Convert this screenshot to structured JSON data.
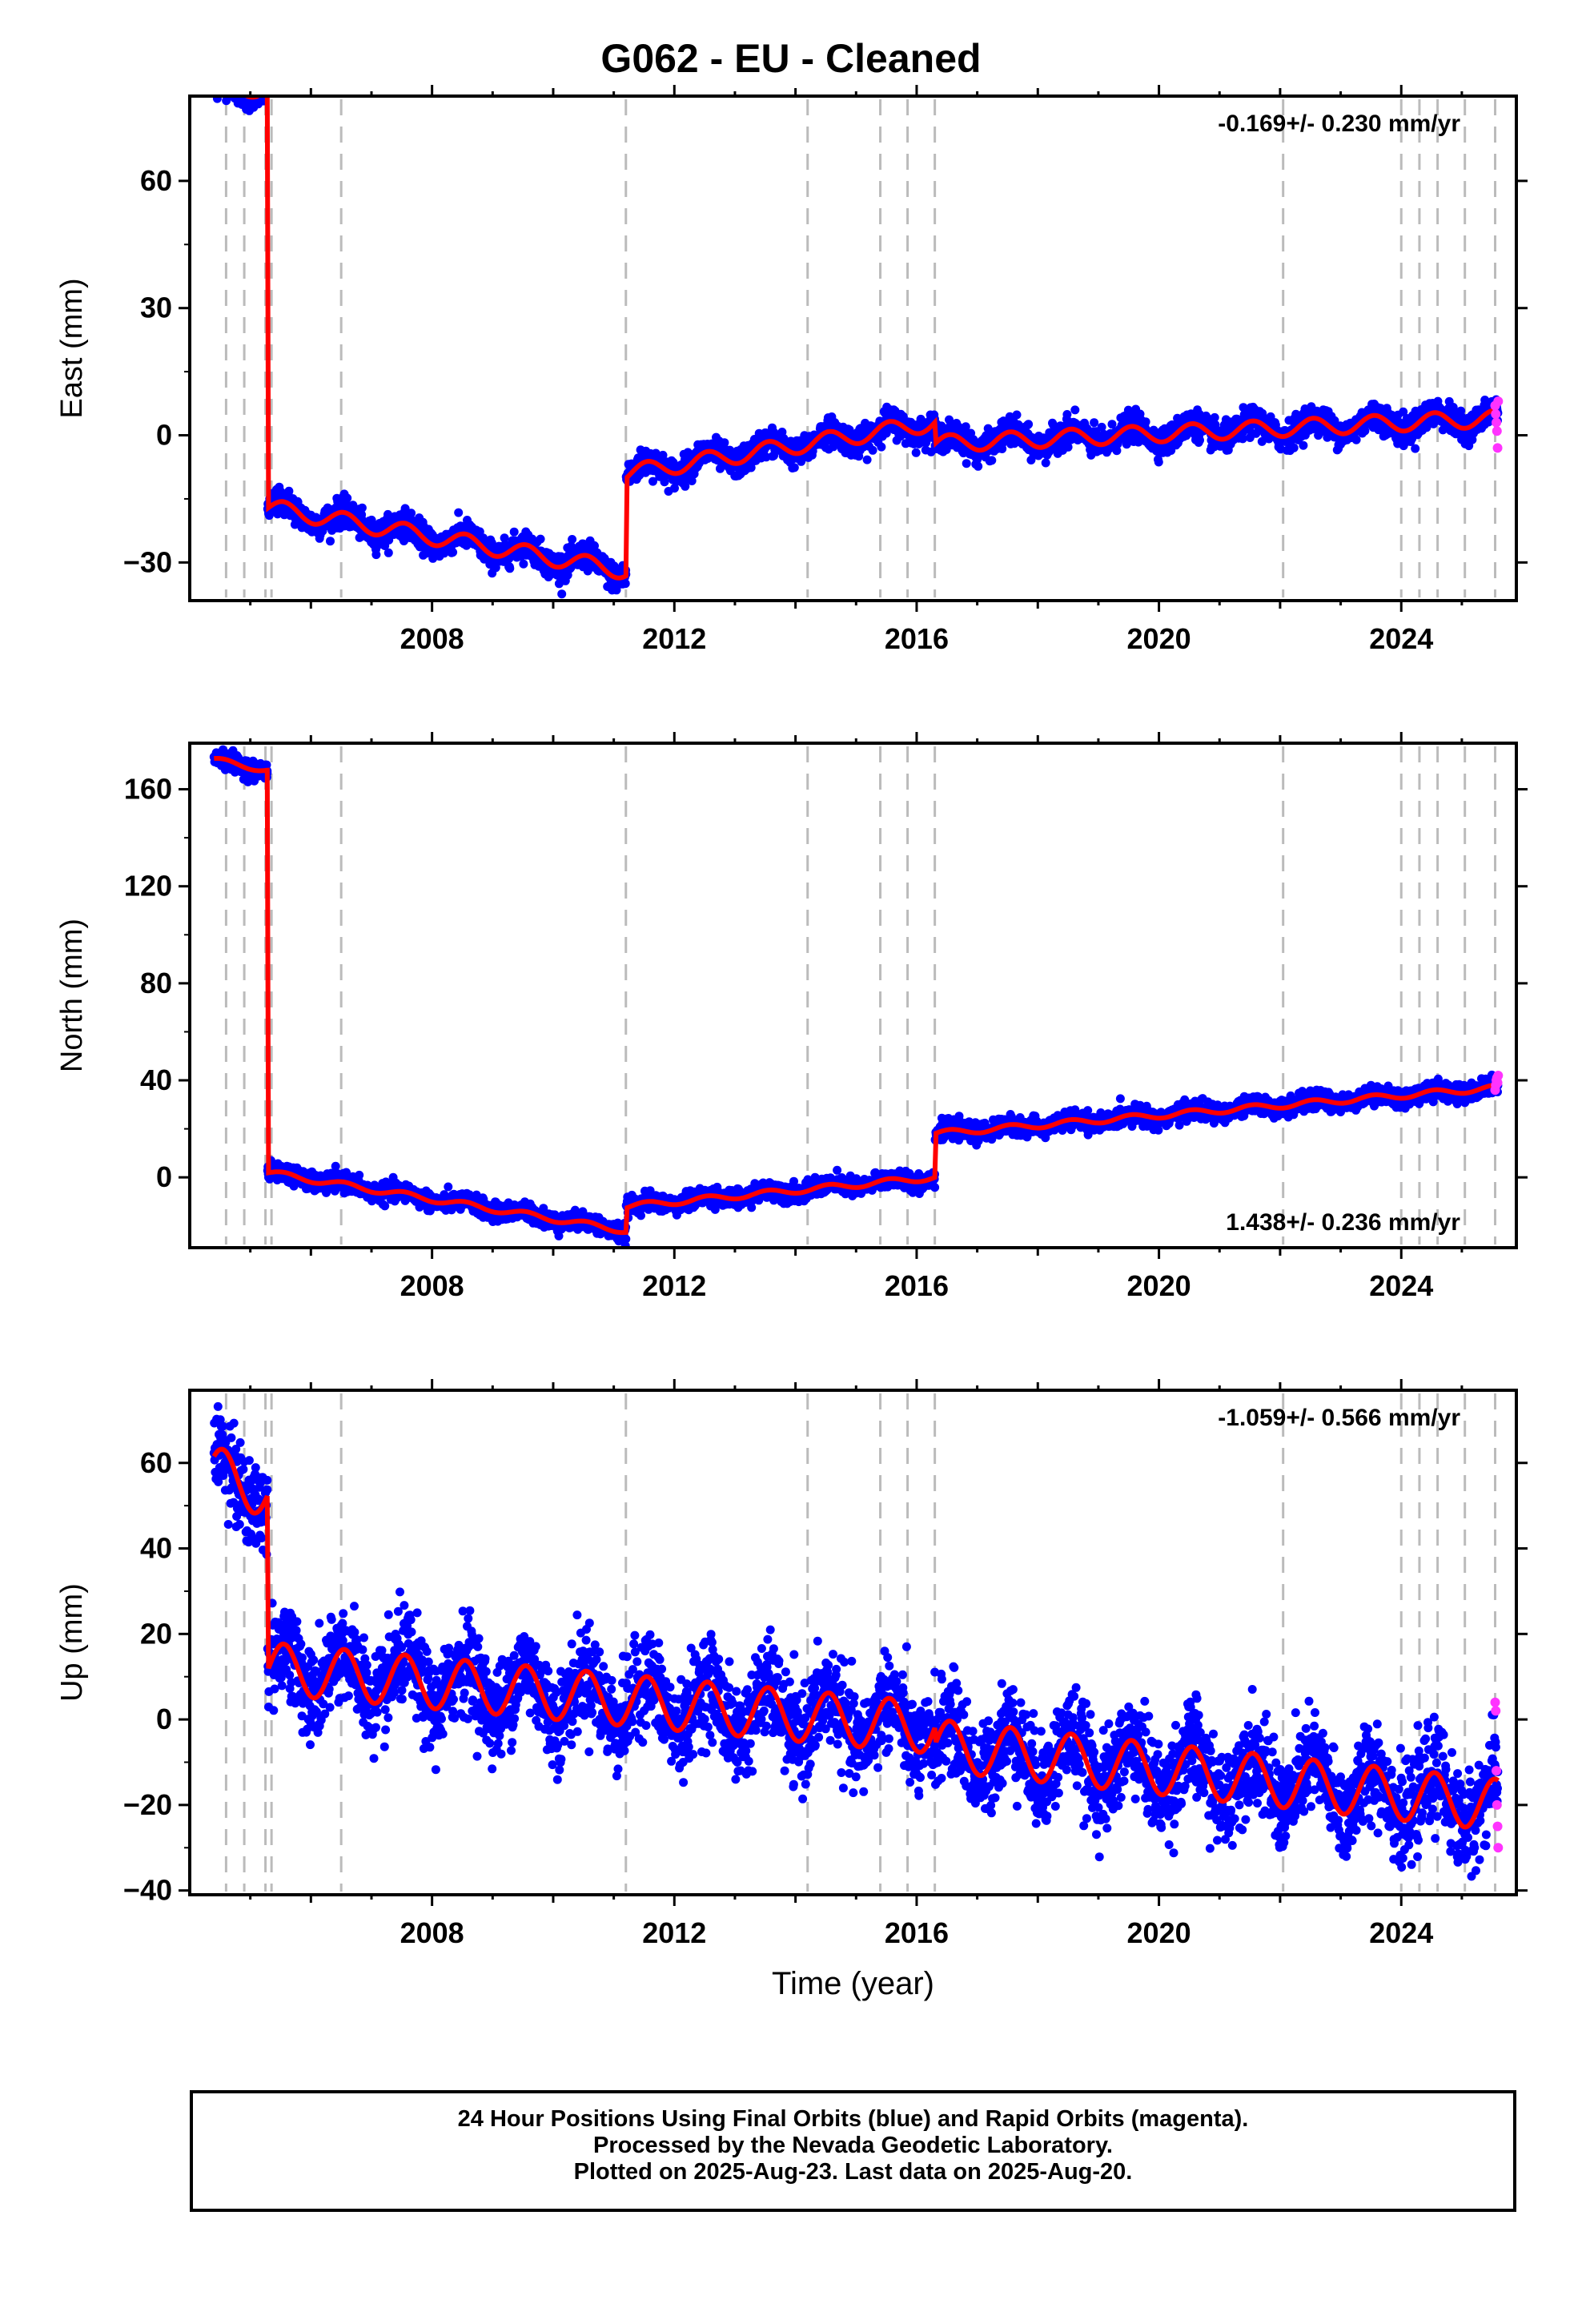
{
  "title": "G062  - EU - Cleaned",
  "xlabel": "Time (year)",
  "colors": {
    "final": "#0000ff",
    "rapid": "#ff33ff",
    "model": "#ff0000",
    "steps": "#bbbbbb"
  },
  "footer": {
    "line1": "24 Hour Positions Using Final Orbits (blue) and Rapid Orbits (magenta).",
    "line2": "Processed by the Nevada Geodetic Laboratory.",
    "line3": "Plotted on 2025-Aug-23. Last data on 2025-Aug-20."
  },
  "chart_data": [
    {
      "type": "scatter",
      "ylabel": "East (mm)",
      "rate_label": "-0.169+/- 0.230 mm/yr",
      "rate_position": "top-right",
      "xlim": [
        2004.0,
        2025.9
      ],
      "ylim": [
        -39,
        80
      ],
      "yticks": [
        -30,
        0,
        30,
        60
      ],
      "xticks": [
        2008,
        2012,
        2016,
        2020,
        2024
      ],
      "steps": [
        2004.6,
        2004.9,
        2005.25,
        2005.35,
        2006.5,
        2011.2,
        2014.2,
        2015.4,
        2015.85,
        2016.3,
        2022.05,
        2024.0,
        2024.3,
        2024.6,
        2025.05,
        2025.55
      ],
      "noise": 1.6,
      "seasonal_amp": 2.0,
      "segments": [
        {
          "t0": 2004.4,
          "t1": 2005.28,
          "y0": 81,
          "y1": 82
        },
        {
          "t0": 2005.28,
          "t1": 2011.2,
          "y0": -17,
          "y1": -32
        },
        {
          "t0": 2011.2,
          "t1": 2016.3,
          "y0": -9,
          "y1": 3
        },
        {
          "t0": 2016.3,
          "t1": 2025.6,
          "y0": -2,
          "y1": 4
        }
      ],
      "rapid": [
        [
          2025.55,
          7
        ],
        [
          2025.56,
          5
        ],
        [
          2025.57,
          3
        ],
        [
          2025.58,
          1
        ],
        [
          2025.59,
          -3
        ],
        [
          2025.6,
          8
        ]
      ]
    },
    {
      "type": "scatter",
      "ylabel": "North (mm)",
      "rate_label": "1.438+/- 0.236 mm/yr",
      "rate_position": "bottom-right",
      "xlim": [
        2004.0,
        2025.9
      ],
      "ylim": [
        -29,
        179
      ],
      "yticks": [
        0,
        40,
        80,
        120,
        160
      ],
      "xticks": [
        2008,
        2012,
        2016,
        2020,
        2024
      ],
      "steps": [
        2004.6,
        2004.9,
        2005.25,
        2005.35,
        2006.5,
        2011.2,
        2014.2,
        2015.4,
        2015.85,
        2016.3,
        2022.05,
        2024.0,
        2024.3,
        2024.6,
        2025.05,
        2025.55
      ],
      "noise": 1.8,
      "seasonal_amp": 1.2,
      "segments": [
        {
          "t0": 2004.4,
          "t1": 2005.28,
          "y0": 172,
          "y1": 168
        },
        {
          "t0": 2005.28,
          "t1": 2011.2,
          "y0": 2,
          "y1": -22
        },
        {
          "t0": 2011.2,
          "t1": 2016.3,
          "y0": -12,
          "y1": 0
        },
        {
          "t0": 2016.3,
          "t1": 2025.6,
          "y0": 18,
          "y1": 37
        }
      ],
      "rapid": [
        [
          2025.55,
          36
        ],
        [
          2025.56,
          38
        ],
        [
          2025.57,
          40
        ],
        [
          2025.58,
          41
        ],
        [
          2025.59,
          39
        ],
        [
          2025.6,
          42
        ]
      ]
    },
    {
      "type": "scatter",
      "ylabel": "Up (mm)",
      "rate_label": "-1.059+/- 0.566 mm/yr",
      "rate_position": "top-right",
      "xlim": [
        2004.0,
        2025.9
      ],
      "ylim": [
        -41,
        77
      ],
      "yticks": [
        -40,
        -20,
        0,
        20,
        40,
        60
      ],
      "xticks": [
        2008,
        2012,
        2016,
        2020,
        2024
      ],
      "steps": [
        2004.6,
        2004.9,
        2005.25,
        2005.35,
        2006.5,
        2011.2,
        2014.2,
        2015.4,
        2015.85,
        2016.3,
        2022.05,
        2024.0,
        2024.3,
        2024.6,
        2025.05,
        2025.55
      ],
      "noise": 5.5,
      "seasonal_amp": 6.0,
      "segments": [
        {
          "t0": 2004.4,
          "t1": 2005.28,
          "y0": 58,
          "y1": 53
        },
        {
          "t0": 2005.28,
          "t1": 2016.3,
          "y0": 12,
          "y1": -2
        },
        {
          "t0": 2016.3,
          "t1": 2025.6,
          "y0": -6,
          "y1": -20
        }
      ],
      "rapid": [
        [
          2025.55,
          4
        ],
        [
          2025.56,
          2
        ],
        [
          2025.57,
          -12
        ],
        [
          2025.58,
          -20
        ],
        [
          2025.59,
          -25
        ],
        [
          2025.6,
          -30
        ]
      ]
    }
  ]
}
